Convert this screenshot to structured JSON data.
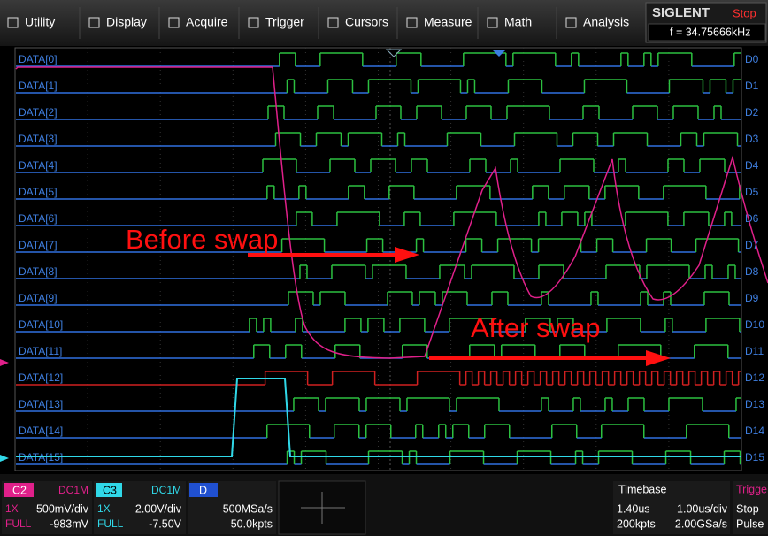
{
  "menu": [
    "Utility",
    "Display",
    "Acquire",
    "Trigger",
    "Cursors",
    "Measure",
    "Math",
    "Analysis"
  ],
  "brand": "SIGLENT",
  "run_state": "Stop",
  "frequency": "f = 34.75666kHz",
  "channels": [
    {
      "label": "DATA[0]",
      "tag": "D0"
    },
    {
      "label": "DATA[1]",
      "tag": "D1"
    },
    {
      "label": "DATA[2]",
      "tag": "D2"
    },
    {
      "label": "DATA[3]",
      "tag": "D3"
    },
    {
      "label": "DATA[4]",
      "tag": "D4"
    },
    {
      "label": "DATA[5]",
      "tag": "D5"
    },
    {
      "label": "DATA[6]",
      "tag": "D6"
    },
    {
      "label": "DATA[7]",
      "tag": "D7"
    },
    {
      "label": "DATA[8]",
      "tag": "D8"
    },
    {
      "label": "DATA[9]",
      "tag": "D9"
    },
    {
      "label": "DATA[10]",
      "tag": "D10"
    },
    {
      "label": "DATA[11]",
      "tag": "D11"
    },
    {
      "label": "DATA[12]",
      "tag": "D12"
    },
    {
      "label": "DATA[13]",
      "tag": "D13"
    },
    {
      "label": "DATA[14]",
      "tag": "D14"
    },
    {
      "label": "DATA[15]",
      "tag": "D15"
    }
  ],
  "annotations": {
    "before": "Before swap",
    "after": "After swap"
  },
  "status": {
    "c2": {
      "name": "C2",
      "coupling": "DC1M",
      "probe": "1X",
      "scale": "500mV/div",
      "bw": "FULL",
      "offset": "-983mV"
    },
    "c3": {
      "name": "C3",
      "coupling": "DC1M",
      "probe": "1X",
      "scale": "2.00V/div",
      "bw": "FULL",
      "offset": "-7.50V"
    },
    "d": {
      "name": "D",
      "rate": "500MSa/s",
      "points": "50.0kpts"
    },
    "timebase": {
      "title": "Timebase",
      "delay": "1.40us",
      "scale": "1.00us/div",
      "points": "200kpts",
      "rate": "2.00GSa/s"
    },
    "trigger": {
      "title": "Trigge",
      "state": "Stop",
      "type": "Pulse"
    }
  }
}
